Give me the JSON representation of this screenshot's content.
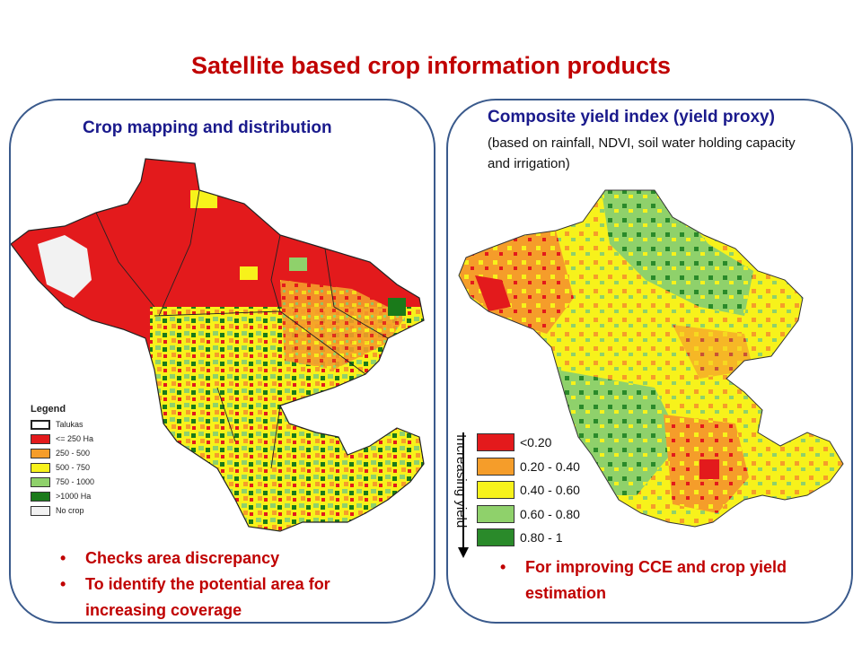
{
  "title": "Satellite based crop information products",
  "left_panel": {
    "heading": "Crop mapping and distribution",
    "legend": {
      "title": "Legend",
      "items": [
        {
          "label": "Talukas",
          "color": "#ffffff"
        },
        {
          "label": "<= 250 Ha",
          "color": "#e31a1c"
        },
        {
          "label": "250 - 500",
          "color": "#f59d2a"
        },
        {
          "label": "500 - 750",
          "color": "#f7f21b"
        },
        {
          "label": "750 - 1000",
          "color": "#8fd16b"
        },
        {
          "label": ">1000 Ha",
          "color": "#1a7a1a"
        },
        {
          "label": "No crop",
          "color": "#f2f2f2"
        }
      ]
    },
    "bullets": [
      "Checks area discrepancy",
      "To identify the potential area for increasing coverage"
    ]
  },
  "right_panel": {
    "heading": "Composite yield index (yield proxy)",
    "subheading": "(based on rainfall, NDVI, soil water holding capacity and irrigation)",
    "arrow_label": "Increasing yield",
    "legend": [
      {
        "label": "<0.20",
        "color": "#e31a1c"
      },
      {
        "label": "0.20 - 0.40",
        "color": "#f59d2a"
      },
      {
        "label": "0.40 - 0.60",
        "color": "#f7f21b"
      },
      {
        "label": "0.60 - 0.80",
        "color": "#8fd16b"
      },
      {
        "label": "0.80 - 1",
        "color": "#2a8a2a"
      }
    ],
    "bullets": [
      "For improving CCE and crop yield estimation"
    ]
  }
}
